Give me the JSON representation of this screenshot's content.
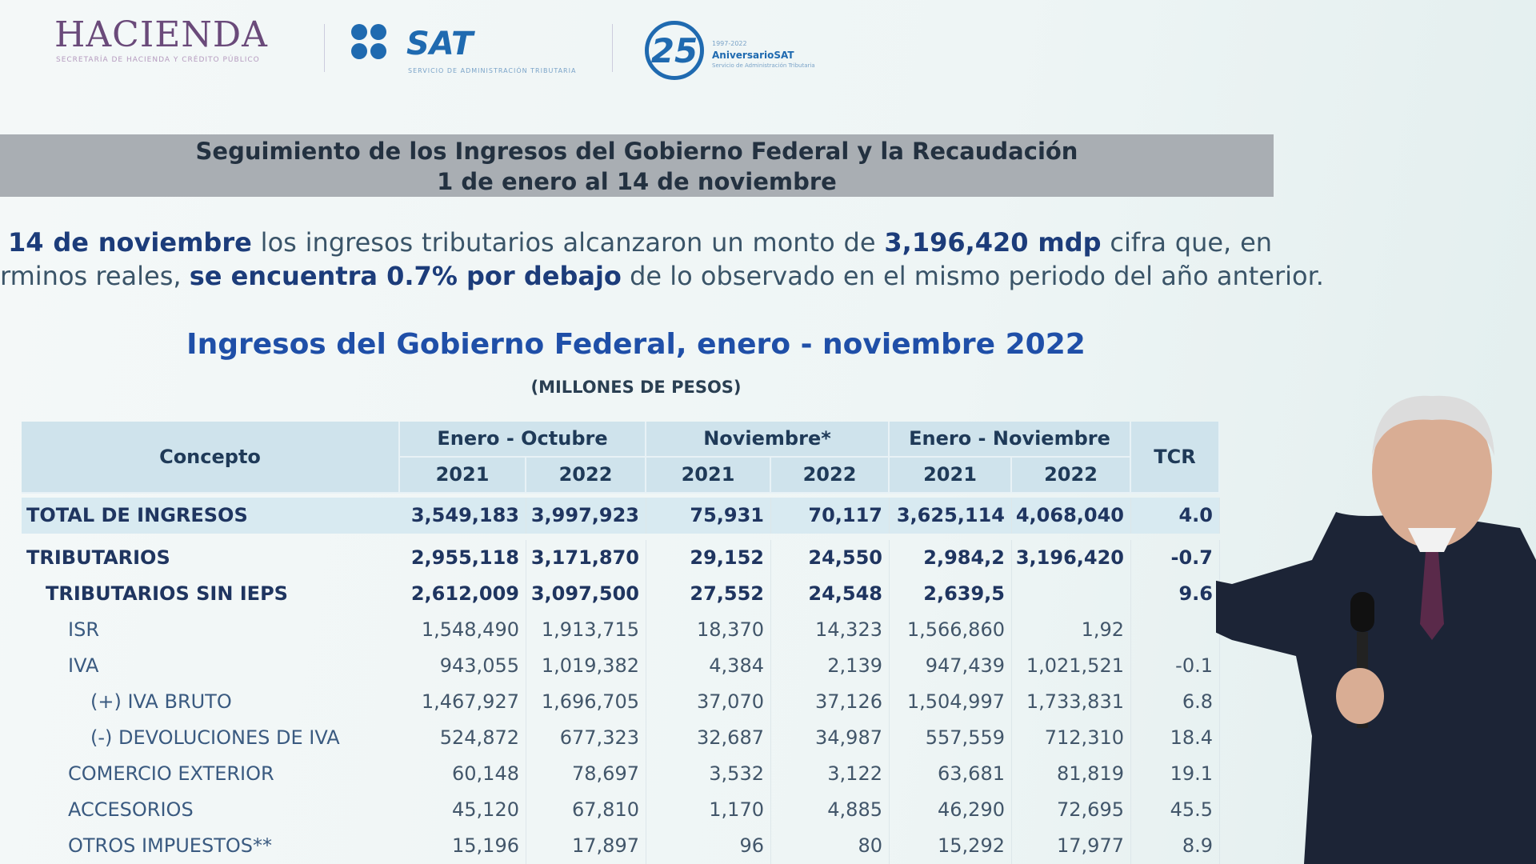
{
  "header": {
    "hacienda": "HACIENDA",
    "hacienda_sub": "SECRETARÍA DE HACIENDA Y CRÉDITO PÚBLICO",
    "sat": "SAT",
    "sat_sub": "SERVICIO DE ADMINISTRACIÓN TRIBUTARIA",
    "anniversary_number": "25",
    "anniversary_years": "1997-2022",
    "anniversary_name": "AniversarioSAT",
    "anniversary_sub": "Servicio de Administración Tributaria"
  },
  "banner": {
    "line1": "Seguimiento de los Ingresos del Gobierno Federal y la Recaudación",
    "line2": "1 de enero al 14 de noviembre"
  },
  "paragraph": {
    "line1": [
      {
        "text": "14 de noviembre",
        "bold": true
      },
      {
        "text": "los ingresos tributarios alcanzaron un monto de",
        "bold": false
      },
      {
        "text": "3,196,420 mdp",
        "bold": true
      },
      {
        "text": "cifra que, en",
        "bold": false
      }
    ],
    "line2": [
      {
        "text": "rminos reales,",
        "bold": false
      },
      {
        "text": "se encuentra 0.7% por debajo",
        "bold": true
      },
      {
        "text": "de lo observado en el mismo periodo del año anterior.",
        "bold": false
      }
    ]
  },
  "table": {
    "title": "Ingresos del Gobierno Federal, enero - noviembre 2022",
    "subtitle": "(MILLONES DE PESOS)",
    "header": {
      "concept": "Concepto",
      "groups": [
        "Enero - Octubre",
        "Noviembre*",
        "Enero - Noviembre"
      ],
      "years": [
        "2021",
        "2022",
        "2021",
        "2022",
        "2021",
        "2022"
      ],
      "tcr": "TCR"
    },
    "rows": [
      [
        "TOTAL DE INGRESOS",
        "3,549,183",
        "3,997,923",
        "75,931",
        "70,117",
        "3,625,114",
        "4,068,040",
        "4.0"
      ],
      [
        "TRIBUTARIOS",
        "2,955,118",
        "3,171,870",
        "29,152",
        "24,550",
        "2,984,2",
        "3,196,420",
        "-0.7"
      ],
      [
        "TRIBUTARIOS SIN IEPS",
        "2,612,009",
        "3,097,500",
        "27,552",
        "24,548",
        "2,639,5",
        null,
        "9.6"
      ],
      [
        "ISR",
        "1,548,490",
        "1,913,715",
        "18,370",
        "14,323",
        "1,566,860",
        "1,92",
        null
      ],
      [
        "IVA",
        "943,055",
        "1,019,382",
        "4,384",
        "2,139",
        "947,439",
        "1,021,521",
        "-0.1"
      ],
      [
        "(+) IVA BRUTO",
        "1,467,927",
        "1,696,705",
        "37,070",
        "37,126",
        "1,504,997",
        "1,733,831",
        "6.8"
      ],
      [
        "(-) DEVOLUCIONES DE IVA",
        "524,872",
        "677,323",
        "32,687",
        "34,987",
        "557,559",
        "712,310",
        "18.4"
      ],
      [
        "COMERCIO EXTERIOR",
        "60,148",
        "78,697",
        "3,532",
        "3,122",
        "63,681",
        "81,819",
        "19.1"
      ],
      [
        "ACCESORIOS",
        "45,120",
        "67,810",
        "1,170",
        "4,885",
        "46,290",
        "72,695",
        "45.5"
      ],
      [
        "OTROS IMPUESTOS**",
        "15,196",
        "17,897",
        "96",
        "80",
        "15,292",
        "17,977",
        "8.9"
      ]
    ]
  }
}
